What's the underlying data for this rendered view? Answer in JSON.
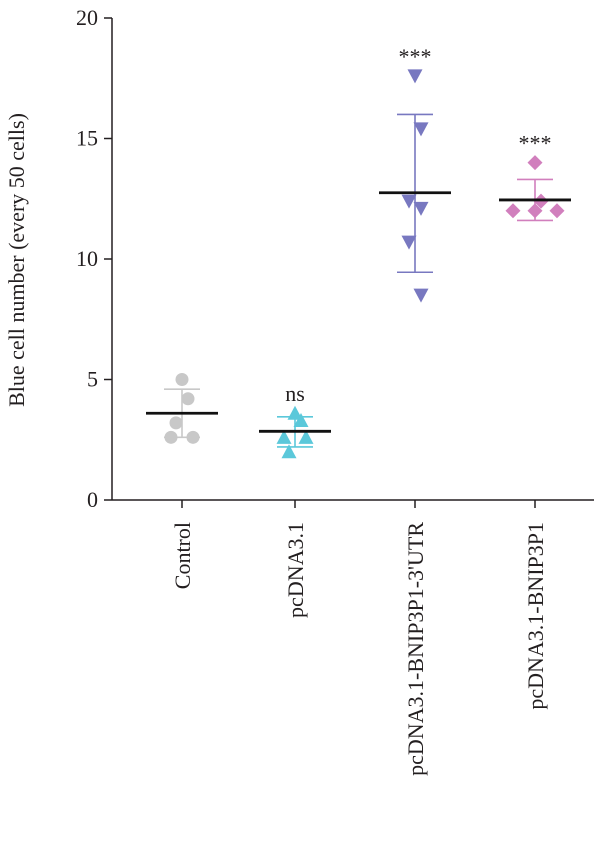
{
  "chart_data": {
    "type": "scatter",
    "subtype": "dot-plot-with-mean-and-sd",
    "ylabel": "Blue cell number (every 50 cells)",
    "ylim": [
      0,
      20
    ],
    "yticks": [
      0,
      5,
      10,
      15,
      20
    ],
    "categories": [
      "Control",
      "pcDNA3.1",
      "pcDNA3.1-BNIP3P1-3'UTR",
      "pcDNA3.1-BNIP3P1"
    ],
    "groups": [
      {
        "category": "Control",
        "color": "#c8c8c8",
        "marker": "circle",
        "points": [
          5.0,
          4.2,
          3.2,
          2.6,
          2.6
        ],
        "mean": 3.6,
        "sd_low": 2.6,
        "sd_high": 4.6,
        "significance": ""
      },
      {
        "category": "pcDNA3.1",
        "color": "#5bc8da",
        "marker": "triangle-up",
        "points": [
          3.6,
          3.3,
          2.6,
          2.6,
          2.0
        ],
        "mean": 2.85,
        "sd_low": 2.2,
        "sd_high": 3.45,
        "significance": "ns"
      },
      {
        "category": "pcDNA3.1-BNIP3P1-3'UTR",
        "color": "#7878c0",
        "marker": "triangle-down",
        "points": [
          17.6,
          15.4,
          12.4,
          12.1,
          10.7,
          8.5
        ],
        "mean": 12.75,
        "sd_low": 9.45,
        "sd_high": 16.0,
        "significance": "***"
      },
      {
        "category": "pcDNA3.1-BNIP3P1",
        "color": "#d17fbd",
        "marker": "diamond",
        "points": [
          14.0,
          12.4,
          12.0,
          12.0,
          12.0
        ],
        "mean": 12.45,
        "sd_low": 11.6,
        "sd_high": 13.3,
        "significance": "***"
      }
    ]
  }
}
